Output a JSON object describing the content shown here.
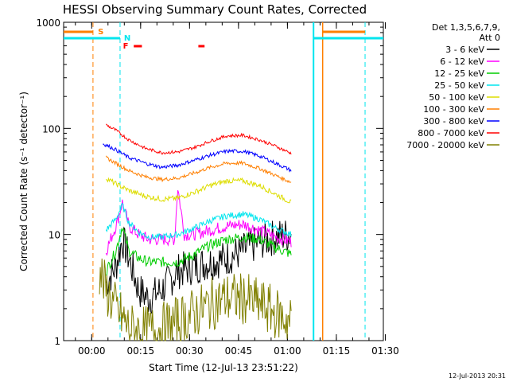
{
  "title": "HESSI Observing Summary Count Rates, Corrected",
  "stamp": "12-Jul-2013 20:31",
  "chart_data": {
    "type": "line",
    "title": "HESSI Observing Summary Count Rates, Corrected",
    "xlabel": "Start Time (12-Jul-13 23:51:22)",
    "ylabel": "Corrected Count Rate (s⁻¹ detector⁻¹)",
    "x_ticks": [
      "00:00",
      "00:15",
      "00:30",
      "00:45",
      "01:00",
      "01:15",
      "01:30"
    ],
    "y_ticks": [
      "1",
      "10",
      "100",
      "1000"
    ],
    "y_scale": "log",
    "ylim": [
      1,
      1000
    ],
    "x_unit": "minutes after 23:51:22",
    "xlim": [
      0,
      98
    ],
    "legend": {
      "header": [
        "Det 1,3,5,6,7,9,",
        "Att 0"
      ],
      "position": "right"
    },
    "series": [
      {
        "name": "3 - 6 keV",
        "color": "#000000",
        "x": [
          13,
          16,
          18,
          20,
          23,
          26,
          30,
          35,
          40,
          45,
          50,
          55,
          60,
          65,
          69.8
        ],
        "y": [
          3.5,
          5,
          9,
          6,
          3,
          2.5,
          3,
          4.5,
          5,
          5.5,
          6,
          7,
          8.5,
          9.5,
          10
        ]
      },
      {
        "name": "6 - 12 keV",
        "color": "#ff00ff",
        "x": [
          13,
          16,
          18,
          20,
          23,
          26,
          30,
          34,
          35,
          37,
          40,
          45,
          50,
          55,
          60,
          65,
          69.8
        ],
        "y": [
          7,
          12,
          20,
          12,
          10,
          9,
          9,
          9,
          28,
          10,
          10,
          11,
          12,
          12.5,
          11,
          9.5,
          8.5
        ]
      },
      {
        "name": "12 - 25 keV",
        "color": "#00cc00",
        "x": [
          13,
          16,
          18,
          20,
          23,
          26,
          30,
          35,
          40,
          45,
          50,
          55,
          60,
          65,
          69.8
        ],
        "y": [
          4.5,
          7,
          12,
          7,
          6,
          5.5,
          5.5,
          5.5,
          6.5,
          8,
          9,
          9.5,
          9,
          7.5,
          6.5
        ]
      },
      {
        "name": "25 - 50 keV",
        "color": "#00e5ee",
        "x": [
          13,
          16,
          18,
          20,
          23,
          26,
          30,
          35,
          40,
          45,
          50,
          55,
          60,
          65,
          69.8
        ],
        "y": [
          11,
          14,
          19,
          13,
          10.5,
          9.5,
          9.5,
          10,
          11.5,
          13.5,
          15,
          15.5,
          14,
          11.5,
          10
        ]
      },
      {
        "name": "50 - 100 keV",
        "color": "#dddd00",
        "x": [
          13,
          16,
          20,
          25,
          30,
          35,
          40,
          45,
          50,
          55,
          60,
          65,
          69.8
        ],
        "y": [
          34,
          30,
          26,
          23,
          21.5,
          22,
          25,
          29,
          32,
          32,
          29,
          24,
          20
        ]
      },
      {
        "name": "100 - 300 keV",
        "color": "#ff7f00",
        "x": [
          13,
          16,
          20,
          25,
          30,
          35,
          40,
          45,
          50,
          55,
          60,
          65,
          69.8
        ],
        "y": [
          53,
          47,
          40,
          35,
          33,
          34,
          38,
          43,
          47,
          47,
          42,
          36,
          31
        ]
      },
      {
        "name": "300 - 800 keV",
        "color": "#0000ff",
        "x": [
          12,
          16,
          20,
          25,
          30,
          35,
          40,
          45,
          50,
          55,
          60,
          65,
          69.8
        ],
        "y": [
          72,
          63,
          53,
          47,
          43,
          45,
          50,
          56,
          61,
          61,
          55,
          47,
          40
        ]
      },
      {
        "name": "800 - 7000 keV",
        "color": "#ff0000",
        "x": [
          13,
          16,
          20,
          25,
          30,
          35,
          40,
          45,
          50,
          55,
          60,
          65,
          69.8
        ],
        "y": [
          108,
          96,
          78,
          65,
          59,
          60,
          66,
          76,
          85,
          86,
          78,
          68,
          58
        ]
      },
      {
        "name": "7000 - 20000 keV",
        "color": "#808000",
        "x": [
          11,
          13,
          16,
          20,
          25,
          30,
          35,
          40,
          45,
          50,
          55,
          60,
          65,
          69.8
        ],
        "y": [
          4.5,
          3,
          2,
          1.3,
          1.2,
          1.3,
          1.5,
          1.8,
          2.2,
          2.5,
          2.5,
          2.2,
          1.8,
          1.5
        ]
      }
    ],
    "flags": [
      {
        "label": "S",
        "color": "#ff7f00"
      },
      {
        "label": "N",
        "color": "#00e5ee"
      },
      {
        "label": "F",
        "color": "#ff0000"
      }
    ]
  }
}
